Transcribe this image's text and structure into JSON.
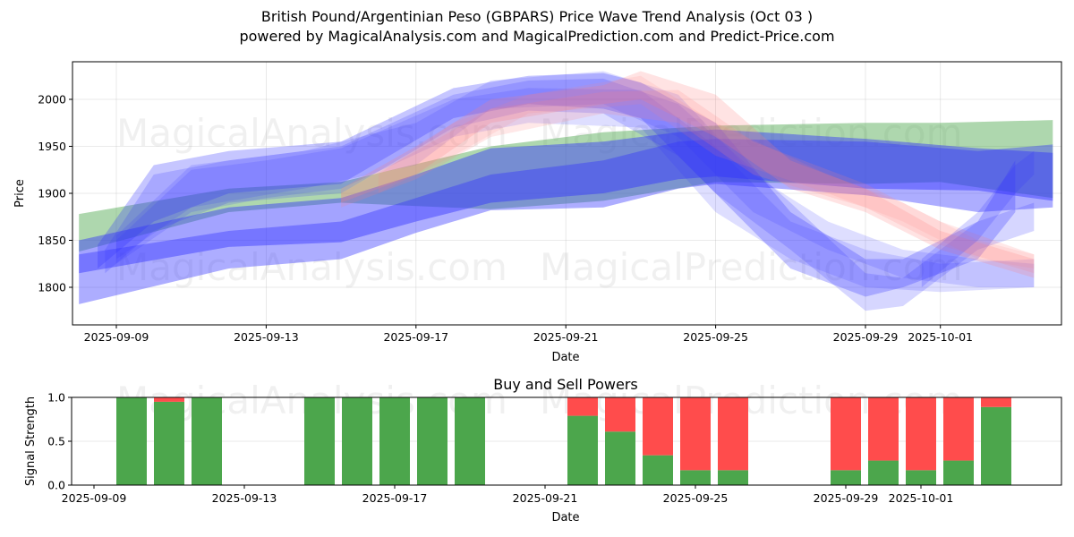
{
  "header": {
    "title": "British Pound/Argentinian Peso (GBPARS) Price Wave Trend Analysis (Oct 03 )",
    "subtitle": "powered by MagicalAnalysis.com and MagicalPrediction.com and Predict-Price.com"
  },
  "watermarks": [
    "MagicalAnalysis.com",
    "MagicalPrediction.com"
  ],
  "colors": {
    "buy": "#4ca64c",
    "sell": "#ff4c4c",
    "wave_blue": "#3333ff",
    "wave_green": "#4ca64c",
    "wave_red": "#ff8080"
  },
  "chart_data": [
    {
      "type": "area",
      "title": "",
      "xlabel": "Date",
      "ylabel": "Price",
      "ylim": [
        1760,
        2040
      ],
      "x_day_origin": "2025-09-09",
      "xlim_days": [
        -1.2,
        25.2
      ],
      "yticks": [
        1800,
        1850,
        1900,
        1950,
        2000
      ],
      "xticks": [
        {
          "day": 0,
          "label": "2025-09-09"
        },
        {
          "day": 4,
          "label": "2025-09-13"
        },
        {
          "day": 8,
          "label": "2025-09-17"
        },
        {
          "day": 12,
          "label": "2025-09-21"
        },
        {
          "day": 16,
          "label": "2025-09-25"
        },
        {
          "day": 20,
          "label": "2025-09-29"
        },
        {
          "day": 22,
          "label": "2025-10-01"
        }
      ],
      "grid": true,
      "bands": [
        {
          "name": "green-trend",
          "color": "green",
          "opacity": 0.45,
          "points": [
            [
              -1,
              1838,
              1878
            ],
            [
              3,
              1880,
              1905
            ],
            [
              6,
              1890,
              1912
            ],
            [
              10,
              1883,
              1950
            ],
            [
              13,
              1892,
              1965
            ],
            [
              16,
              1912,
              1972
            ],
            [
              20,
              1910,
              1975
            ],
            [
              22,
              1912,
              1975
            ],
            [
              25,
              1895,
              1978
            ]
          ]
        },
        {
          "name": "blue-main",
          "color": "blue",
          "opacity": 0.45,
          "points": [
            [
              -1,
              1815,
              1850
            ],
            [
              3,
              1843,
              1885
            ],
            [
              6,
              1848,
              1895
            ],
            [
              8,
              1870,
              1920
            ],
            [
              10,
              1890,
              1948
            ],
            [
              13,
              1900,
              1955
            ],
            [
              15,
              1915,
              1965
            ],
            [
              16,
              1918,
              1968
            ],
            [
              20,
              1905,
              1958
            ],
            [
              23,
              1903,
              1948
            ],
            [
              25,
              1892,
              1943
            ]
          ]
        },
        {
          "name": "blue-lower",
          "color": "blue",
          "opacity": 0.4,
          "points": [
            [
              -1,
              1782,
              1835
            ],
            [
              3,
              1820,
              1860
            ],
            [
              6,
              1830,
              1870
            ],
            [
              8,
              1858,
              1895
            ],
            [
              10,
              1882,
              1920
            ],
            [
              13,
              1885,
              1935
            ],
            [
              15,
              1905,
              1955
            ],
            [
              16,
              1910,
              1958
            ],
            [
              20,
              1898,
              1955
            ],
            [
              23,
              1880,
              1945
            ],
            [
              25,
              1885,
              1952
            ]
          ]
        },
        {
          "name": "blue-upper",
          "color": "blue",
          "opacity": 0.28,
          "points": [
            [
              -0.5,
              1820,
              1845
            ],
            [
              1,
              1870,
              1930
            ],
            [
              3,
              1900,
              1945
            ],
            [
              6,
              1910,
              1955
            ],
            [
              9,
              1980,
              2012
            ],
            [
              11,
              1995,
              2025
            ],
            [
              13,
              1990,
              2028
            ],
            [
              14,
              1980,
              2018
            ],
            [
              16,
              1900,
              1975
            ],
            [
              18,
              1820,
              1880
            ],
            [
              20,
              1790,
              1830
            ],
            [
              21,
              1800,
              1830
            ],
            [
              23,
              1830,
              1870
            ],
            [
              24,
              1880,
              1935
            ]
          ]
        },
        {
          "name": "blue-upper-2",
          "color": "blue",
          "opacity": 0.2,
          "points": [
            [
              -0.3,
              1815,
              1840
            ],
            [
              1,
              1860,
              1920
            ],
            [
              3,
              1890,
              1935
            ],
            [
              6,
              1900,
              1950
            ],
            [
              9,
              1970,
              2005
            ],
            [
              11,
              1988,
              2020
            ],
            [
              13,
              1985,
              2022
            ],
            [
              15,
              1940,
              1995
            ],
            [
              16,
              1900,
              1960
            ],
            [
              18,
              1840,
              1890
            ],
            [
              20,
              1775,
              1815
            ],
            [
              21,
              1780,
              1810
            ],
            [
              23,
              1840,
              1870
            ],
            [
              24.5,
              1860,
              1890
            ]
          ]
        },
        {
          "name": "blue-upper-3",
          "color": "blue",
          "opacity": 0.16,
          "points": [
            [
              0,
              1825,
              1850
            ],
            [
              2,
              1880,
              1925
            ],
            [
              4,
              1895,
              1935
            ],
            [
              6,
              1905,
              1948
            ],
            [
              9,
              1960,
              2000
            ],
            [
              11,
              1975,
              2012
            ],
            [
              14,
              1970,
              2010
            ],
            [
              16,
              1880,
              1950
            ],
            [
              18,
              1830,
              1870
            ],
            [
              20,
              1800,
              1840
            ],
            [
              22,
              1795,
              1825
            ],
            [
              24.5,
              1800,
              1830
            ]
          ]
        },
        {
          "name": "blue-upper-4",
          "color": "blue",
          "opacity": 0.16,
          "points": [
            [
              0,
              1830,
              1855
            ],
            [
              2,
              1885,
              1930
            ],
            [
              5,
              1905,
              1945
            ],
            [
              8,
              1930,
              1975
            ],
            [
              10,
              1990,
              2020
            ],
            [
              13,
              1995,
              2030
            ],
            [
              15,
              1960,
              2005
            ],
            [
              17,
              1880,
              1920
            ],
            [
              19,
              1840,
              1870
            ],
            [
              21,
              1810,
              1840
            ],
            [
              23,
              1800,
              1830
            ],
            [
              24.5,
              1800,
              1825
            ]
          ]
        },
        {
          "name": "red-1",
          "color": "red",
          "opacity": 0.22,
          "points": [
            [
              6,
              1890,
              1905
            ],
            [
              8,
              1920,
              1950
            ],
            [
              10,
              1975,
              2000
            ],
            [
              13,
              1995,
              2015
            ],
            [
              14,
              2000,
              2030
            ],
            [
              16,
              1960,
              2005
            ],
            [
              18,
              1905,
              1935
            ],
            [
              20,
              1880,
              1905
            ],
            [
              22,
              1840,
              1860
            ],
            [
              24.5,
              1810,
              1830
            ]
          ]
        },
        {
          "name": "red-2",
          "color": "red",
          "opacity": 0.18,
          "points": [
            [
              6,
              1885,
              1900
            ],
            [
              8,
              1915,
              1945
            ],
            [
              10,
              1960,
              1990
            ],
            [
              13,
              1985,
              2008
            ],
            [
              15,
              1975,
              2010
            ],
            [
              17,
              1920,
              1955
            ],
            [
              20,
              1885,
              1910
            ],
            [
              22,
              1845,
              1870
            ],
            [
              24.5,
              1815,
              1835
            ]
          ]
        },
        {
          "name": "red-3",
          "color": "red",
          "opacity": 0.14,
          "points": [
            [
              7,
              1900,
              1920
            ],
            [
              9,
              1940,
              1975
            ],
            [
              11,
              1985,
              2005
            ],
            [
              14,
              1995,
              2025
            ],
            [
              16,
              1940,
              1975
            ],
            [
              19,
              1900,
              1920
            ],
            [
              21,
              1870,
              1890
            ],
            [
              23,
              1830,
              1850
            ],
            [
              24.5,
              1820,
              1835
            ]
          ]
        },
        {
          "name": "blue-upswing",
          "color": "blue",
          "opacity": 0.2,
          "points": [
            [
              21.5,
              1800,
              1830
            ],
            [
              23,
              1850,
              1880
            ],
            [
              24,
              1900,
              1930
            ],
            [
              24.5,
              1920,
              1945
            ]
          ]
        }
      ]
    },
    {
      "type": "bar",
      "title": "Buy and Sell Powers",
      "xlabel": "Date",
      "ylabel": "Signal Strength",
      "ylim": [
        0,
        1.0
      ],
      "yticks": [
        {
          "v": 0,
          "label": "0.0"
        },
        {
          "v": 0.5,
          "label": "0.5"
        },
        {
          "v": 1.0,
          "label": "1.0"
        }
      ],
      "x_day_origin": "2025-09-09",
      "xlim_days": [
        -0.6,
        25.7
      ],
      "xticks": [
        {
          "day": 0,
          "label": "2025-09-09"
        },
        {
          "day": 4,
          "label": "2025-09-13"
        },
        {
          "day": 8,
          "label": "2025-09-17"
        },
        {
          "day": 12,
          "label": "2025-09-21"
        },
        {
          "day": 16,
          "label": "2025-09-25"
        },
        {
          "day": 20,
          "label": "2025-09-29"
        },
        {
          "day": 22,
          "label": "2025-10-01"
        }
      ],
      "grid": true,
      "categories": [
        "2025-09-10",
        "2025-09-11",
        "2025-09-12",
        "2025-09-15",
        "2025-09-16",
        "2025-09-17",
        "2025-09-18",
        "2025-09-19",
        "2025-09-22",
        "2025-09-23",
        "2025-09-24",
        "2025-09-25",
        "2025-09-26",
        "2025-09-29",
        "2025-09-30",
        "2025-10-01",
        "2025-10-02",
        "2025-10-03"
      ],
      "days": [
        1,
        2,
        3,
        6,
        7,
        8,
        9,
        10,
        13,
        14,
        15,
        16,
        17,
        20,
        21,
        22,
        23,
        24
      ],
      "series": [
        {
          "name": "Buy",
          "values": [
            1.0,
            0.95,
            1.0,
            1.0,
            1.0,
            1.0,
            1.0,
            1.0,
            0.79,
            0.61,
            0.34,
            0.17,
            0.17,
            0.17,
            0.28,
            0.17,
            0.28,
            0.89
          ]
        },
        {
          "name": "Sell",
          "values": [
            0.0,
            0.05,
            0.0,
            0.0,
            0.0,
            0.0,
            0.0,
            0.0,
            0.21,
            0.39,
            0.66,
            0.83,
            0.83,
            0.83,
            0.72,
            0.83,
            0.72,
            0.11
          ]
        }
      ]
    }
  ]
}
